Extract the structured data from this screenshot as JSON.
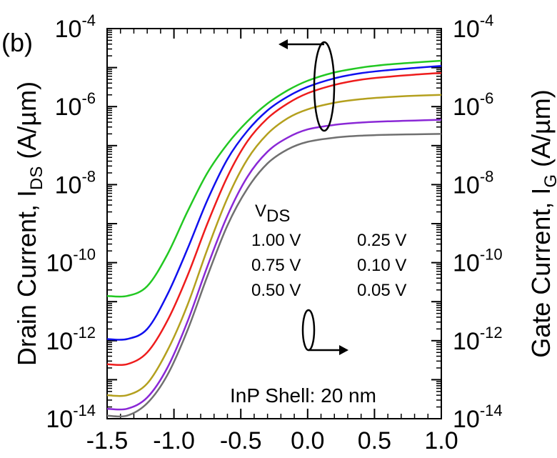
{
  "panel_label": "(b)",
  "chart_data": {
    "type": "line",
    "title": "",
    "xlim": [
      -1.5,
      1.0
    ],
    "x_ticks": [
      -1.5,
      -1.0,
      -0.5,
      0.0,
      0.5,
      1.0
    ],
    "x_tick_labels": [
      "-1.5",
      "-1.0",
      "-0.5",
      "0.0",
      "0.5",
      "1.0"
    ],
    "y_scale": "log",
    "ylim": [
      1e-14,
      0.0001
    ],
    "y_tick_exponents": [
      -14,
      -12,
      -10,
      -8,
      -6,
      -4
    ],
    "y_tick_base": "10",
    "y_tick_exponent_labels": [
      "-14",
      "-12",
      "-10",
      "-8",
      "-6",
      "-4"
    ],
    "ylabel_left": {
      "main": "Drain Current, I",
      "sub": "DS",
      "unit": " (A/µm)"
    },
    "ylabel_right": {
      "main": "Gate Current, I",
      "sub": "G",
      "unit": " (A/µm)"
    },
    "legend": {
      "title_main": "V",
      "title_sub": "DS",
      "col1": [
        "1.00 V",
        "0.75 V",
        "0.50 V"
      ],
      "col2": [
        "0.25 V",
        "0.10 V",
        "0.05 V"
      ]
    },
    "annotation": "InP Shell: 20 nm",
    "grid": false,
    "series": [
      {
        "label": "1.00 V",
        "color": "#22c822",
        "x": [
          -1.5,
          -1.35,
          -1.2,
          -1.05,
          -0.9,
          -0.75,
          -0.6,
          -0.45,
          -0.3,
          -0.15,
          0.0,
          0.2,
          0.4,
          0.6,
          0.8,
          1.0
        ],
        "y": [
          1.4e-11,
          1.4e-11,
          2.5e-11,
          1.6e-10,
          2e-09,
          2e-08,
          1.1e-07,
          4.2e-07,
          1.2e-06,
          2.6e-06,
          4.6e-06,
          7.5e-06,
          1e-05,
          1.2e-05,
          1.35e-05,
          1.5e-05
        ]
      },
      {
        "label": "0.75 V",
        "color": "#1010ee",
        "x": [
          -1.5,
          -1.35,
          -1.2,
          -1.05,
          -0.9,
          -0.75,
          -0.6,
          -0.45,
          -0.3,
          -0.15,
          0.0,
          0.2,
          0.4,
          0.6,
          0.8,
          1.0
        ],
        "y": [
          1.1e-12,
          1.1e-12,
          2e-12,
          1.5e-11,
          2.2e-10,
          4e-09,
          4.5e-08,
          2.4e-07,
          8e-07,
          1.8e-06,
          3.2e-06,
          5.3e-06,
          7.2e-06,
          8.6e-06,
          9.8e-06,
          1.1e-05
        ]
      },
      {
        "label": "0.50 V",
        "color": "#ee1c1c",
        "x": [
          -1.5,
          -1.35,
          -1.2,
          -1.05,
          -0.9,
          -0.75,
          -0.6,
          -0.45,
          -0.3,
          -0.15,
          0.0,
          0.2,
          0.4,
          0.6,
          0.8,
          1.0
        ],
        "y": [
          2.5e-13,
          2.5e-13,
          5e-13,
          3.2e-12,
          4.5e-11,
          1e-09,
          1.6e-08,
          1.3e-07,
          5e-07,
          1.2e-06,
          2.2e-06,
          3.6e-06,
          4.9e-06,
          5.8e-06,
          6.6e-06,
          7.3e-06
        ]
      },
      {
        "label": "0.25 V",
        "color": "#b4a01e",
        "x": [
          -1.5,
          -1.35,
          -1.2,
          -1.05,
          -0.9,
          -0.75,
          -0.6,
          -0.45,
          -0.3,
          -0.15,
          0.0,
          0.2,
          0.4,
          0.6,
          0.8,
          1.0
        ],
        "y": [
          4e-14,
          4e-14,
          8e-14,
          5.5e-13,
          8e-12,
          2.2e-10,
          4.5e-09,
          4.5e-08,
          2e-07,
          5e-07,
          8.5e-07,
          1.25e-06,
          1.55e-06,
          1.75e-06,
          1.9e-06,
          2e-06
        ]
      },
      {
        "label": "0.10 V",
        "color": "#8a28d6",
        "x": [
          -1.5,
          -1.35,
          -1.2,
          -1.05,
          -0.9,
          -0.75,
          -0.6,
          -0.45,
          -0.3,
          -0.15,
          0.0,
          0.2,
          0.4,
          0.6,
          0.8,
          1.0
        ],
        "y": [
          1.8e-14,
          1.8e-14,
          3.5e-14,
          2e-13,
          3e-12,
          8e-11,
          1.6e-09,
          1.6e-08,
          7e-08,
          1.6e-07,
          2.6e-07,
          3.4e-07,
          3.9e-07,
          4.2e-07,
          4.4e-07,
          4.6e-07
        ]
      },
      {
        "label": "0.05 V",
        "color": "#707070",
        "x": [
          -1.5,
          -1.35,
          -1.2,
          -1.05,
          -0.9,
          -0.75,
          -0.6,
          -0.45,
          -0.3,
          -0.15,
          0.0,
          0.2,
          0.4,
          0.6,
          0.8,
          1.0
        ],
        "y": [
          1.2e-14,
          1.2e-14,
          2.5e-14,
          1.3e-13,
          1.8e-12,
          4.5e-11,
          9e-10,
          8e-09,
          3.5e-08,
          8e-08,
          1.25e-07,
          1.6e-07,
          1.8e-07,
          1.9e-07,
          1.95e-07,
          2e-07
        ]
      }
    ]
  }
}
